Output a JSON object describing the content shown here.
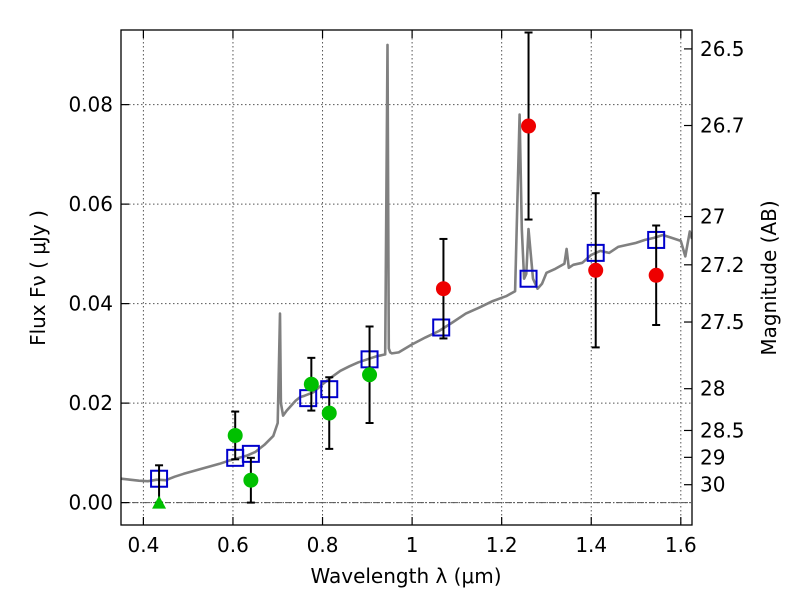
{
  "chart_data": {
    "type": "scatter",
    "xlabel": "Wavelength  λ (μm)",
    "ylabel": "Flux  Fν  ( μJy )",
    "y2label": "Magnitude (AB)",
    "xlim": [
      0.35,
      1.625
    ],
    "ylim": [
      -0.0045,
      0.095
    ],
    "grid": true,
    "x_ticks": [
      0.4,
      0.6,
      0.8,
      1.0,
      1.2,
      1.4,
      1.6
    ],
    "x_tick_labels": [
      "0.4",
      "0.6",
      "0.8",
      "1",
      "1.2",
      "1.4",
      "1.6"
    ],
    "y_ticks": [
      0.0,
      0.02,
      0.04,
      0.06,
      0.08
    ],
    "y_tick_labels": [
      "0.00",
      "0.02",
      "0.04",
      "0.06",
      "0.08"
    ],
    "y2_ticks": [
      {
        "label": "26.5",
        "flux": 0.0912
      },
      {
        "label": "26.7",
        "flux": 0.0758
      },
      {
        "label": "27",
        "flux": 0.0575
      },
      {
        "label": "27.2",
        "flux": 0.0478
      },
      {
        "label": "27.5",
        "flux": 0.0363
      },
      {
        "label": "28",
        "flux": 0.0229
      },
      {
        "label": "28.5",
        "flux": 0.0145
      },
      {
        "label": "29",
        "flux": 0.0091
      },
      {
        "label": "30",
        "flux": 0.0036
      }
    ],
    "colors": {
      "model": "#808080",
      "squares": "#0000cc",
      "green": "#00c000",
      "red": "#ee0000",
      "errorbar": "#000000",
      "grid": "#555555"
    },
    "series": [
      {
        "marker": "line",
        "color": "#808080",
        "x": [
          0.35,
          0.37,
          0.39,
          0.41,
          0.43,
          0.45,
          0.47,
          0.49,
          0.51,
          0.53,
          0.55,
          0.57,
          0.59,
          0.61,
          0.63,
          0.65,
          0.67,
          0.69,
          0.7,
          0.705,
          0.707,
          0.712,
          0.72,
          0.73,
          0.74,
          0.75,
          0.76,
          0.78,
          0.8,
          0.82,
          0.84,
          0.86,
          0.88,
          0.9,
          0.92,
          0.94,
          0.945,
          0.948,
          0.951,
          0.955,
          0.97,
          1.0,
          1.03,
          1.06,
          1.09,
          1.12,
          1.15,
          1.18,
          1.21,
          1.23,
          1.24,
          1.245,
          1.25,
          1.255,
          1.26,
          1.27,
          1.28,
          1.29,
          1.3,
          1.32,
          1.34,
          1.345,
          1.35,
          1.36,
          1.38,
          1.4,
          1.42,
          1.44,
          1.46,
          1.48,
          1.5,
          1.52,
          1.54,
          1.56,
          1.58,
          1.6,
          1.61,
          1.62,
          1.625
        ],
        "y": [
          0.0048,
          0.0046,
          0.0044,
          0.0043,
          0.0046,
          0.0045,
          0.0052,
          0.0058,
          0.0063,
          0.0068,
          0.0073,
          0.0078,
          0.0084,
          0.0089,
          0.0094,
          0.0102,
          0.0116,
          0.0134,
          0.016,
          0.038,
          0.02,
          0.0175,
          0.0185,
          0.0195,
          0.0205,
          0.0212,
          0.0215,
          0.0222,
          0.0238,
          0.0252,
          0.0265,
          0.0274,
          0.0282,
          0.0288,
          0.0294,
          0.0298,
          0.092,
          0.031,
          0.0302,
          0.03,
          0.0302,
          0.0318,
          0.0332,
          0.0345,
          0.0362,
          0.038,
          0.0392,
          0.0405,
          0.0415,
          0.0425,
          0.078,
          0.055,
          0.045,
          0.046,
          0.055,
          0.045,
          0.043,
          0.044,
          0.0462,
          0.047,
          0.048,
          0.051,
          0.0472,
          0.0478,
          0.0482,
          0.0498,
          0.0506,
          0.0502,
          0.0514,
          0.0518,
          0.0522,
          0.0528,
          0.0532,
          0.0538,
          0.0532,
          0.0526,
          0.0495,
          0.0545,
          0.053
        ]
      },
      {
        "marker": "square",
        "color": "#0000cc",
        "x": [
          0.435,
          0.605,
          0.64,
          0.768,
          0.815,
          0.905,
          1.065,
          1.26,
          1.41,
          1.545
        ],
        "y": [
          0.0048,
          0.009,
          0.0098,
          0.021,
          0.0228,
          0.0288,
          0.0352,
          0.045,
          0.0502,
          0.0528
        ]
      },
      {
        "marker": "circle",
        "color": "#00c000",
        "x": [
          0.605,
          0.64,
          0.775,
          0.815,
          0.905
        ],
        "y": [
          0.0135,
          0.0045,
          0.0238,
          0.018,
          0.0257
        ],
        "err": [
          0.0048,
          0.0045,
          0.0053,
          0.0072,
          0.0097
        ]
      },
      {
        "marker": "circle",
        "color": "#ee0000",
        "x": [
          1.07,
          1.26,
          1.41,
          1.545
        ],
        "y": [
          0.043,
          0.0757,
          0.0467,
          0.0457
        ],
        "err": [
          0.01,
          0.0188,
          0.0155,
          0.01
        ]
      },
      {
        "marker": "triangle",
        "color": "#00c000",
        "x": [
          0.435
        ],
        "y": [
          0.0
        ],
        "err_up": [
          0.0075
        ]
      }
    ]
  }
}
